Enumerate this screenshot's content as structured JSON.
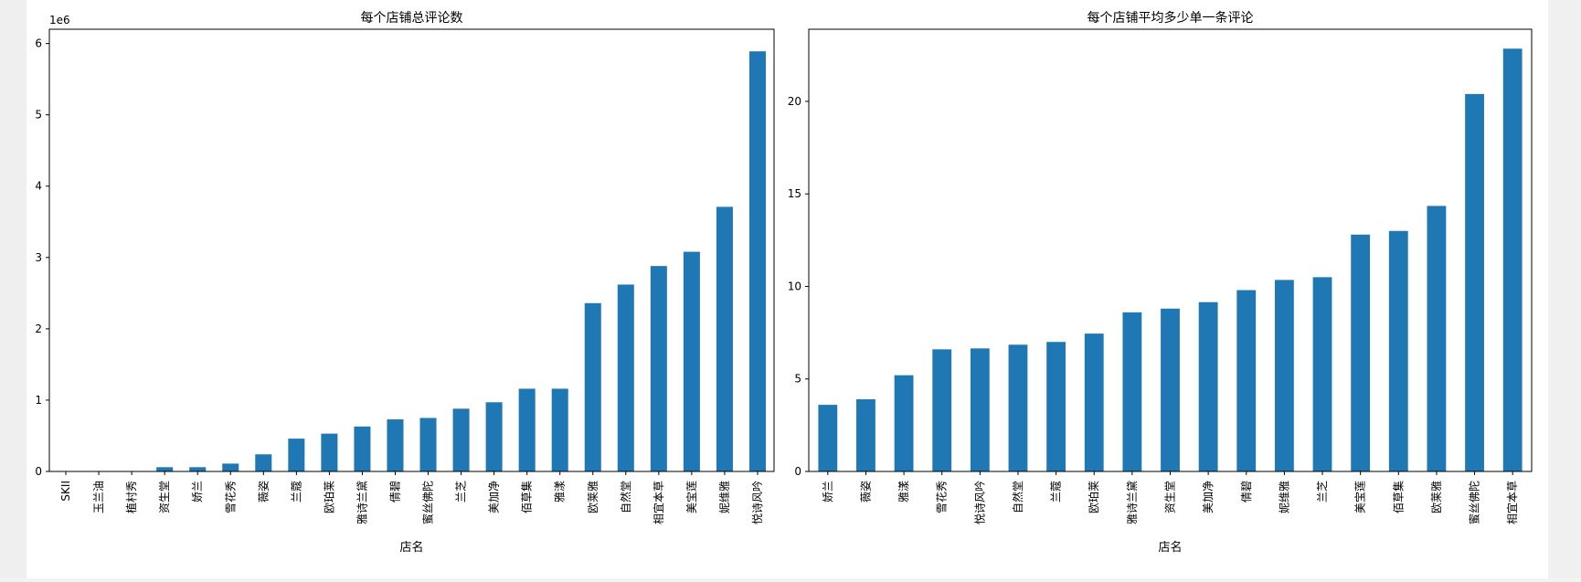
{
  "chart_data": [
    {
      "type": "bar",
      "title": "每个店铺总评论数",
      "xlabel": "店名",
      "ylabel": "",
      "offset_label": "1e6",
      "ylim": [
        0,
        6.2
      ],
      "yticks": [
        0,
        1,
        2,
        3,
        4,
        5,
        6
      ],
      "bar_color": "#1f77b4",
      "categories": [
        "SKII",
        "玉兰油",
        "植村秀",
        "资生堂",
        "娇兰",
        "雪花秀",
        "薇姿",
        "兰蔻",
        "欧珀莱",
        "雅诗兰黛",
        "倩碧",
        "蜜丝佛陀",
        "兰芝",
        "美加净",
        "佰草集",
        "雅漾",
        "欧莱雅",
        "自然堂",
        "相宜本草",
        "美宝莲",
        "妮维雅",
        "悦诗风吟"
      ],
      "values": [
        0.0,
        0.0,
        0.0,
        0.06,
        0.06,
        0.11,
        0.24,
        0.46,
        0.53,
        0.63,
        0.73,
        0.75,
        0.88,
        0.97,
        1.16,
        1.16,
        2.36,
        2.62,
        2.88,
        3.08,
        3.71,
        5.89
      ]
    },
    {
      "type": "bar",
      "title": "每个店铺平均多少单一条评论",
      "xlabel": "店名",
      "ylabel": "",
      "ylim": [
        0,
        23.9
      ],
      "yticks": [
        0,
        5,
        10,
        15,
        20
      ],
      "bar_color": "#1f77b4",
      "categories": [
        "娇兰",
        "薇姿",
        "雅漾",
        "雪花秀",
        "悦诗风吟",
        "自然堂",
        "兰蔻",
        "欧珀莱",
        "雅诗兰黛",
        "资生堂",
        "美加净",
        "倩碧",
        "妮维雅",
        "兰芝",
        "美宝莲",
        "佰草集",
        "欧莱雅",
        "蜜丝佛陀",
        "相宜本草"
      ],
      "values": [
        3.6,
        3.9,
        5.2,
        6.6,
        6.65,
        6.85,
        7.0,
        7.45,
        8.6,
        8.8,
        9.15,
        9.8,
        10.35,
        10.5,
        12.8,
        13.0,
        14.35,
        20.4,
        22.85
      ]
    }
  ]
}
